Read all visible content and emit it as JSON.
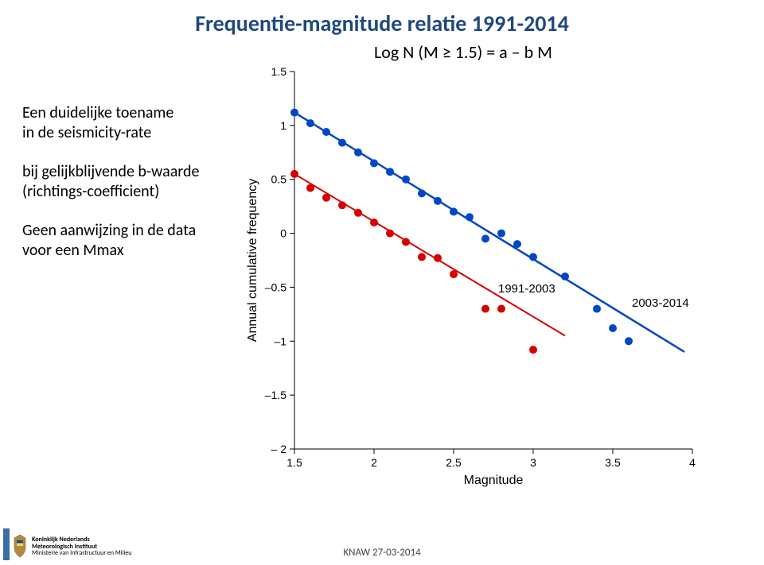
{
  "title": "Frequentie-magnitude relatie 1991-2014",
  "title_color": "#1f497d",
  "equation": "Log N (M ≥ 1.5) = a – b M",
  "side_text": {
    "block1_line1": "Een duidelijke toename",
    "block1_line2": "in de seismicity-rate",
    "block2_line1": "bij gelijkblijvende b-waarde",
    "block2_line2": "(richtings-coefficient)",
    "block3_line1": "Geen aanwijzing in de data",
    "block3_line2": "voor een Mmax"
  },
  "chart": {
    "type": "scatter-with-lines",
    "background_color": "#ffffff",
    "axis_color": "#000000",
    "tick_fontsize": 14,
    "label_fontsize": 16,
    "xlabel": "Magnitude",
    "ylabel": "Annual cumulative frequency",
    "xlim": [
      1.5,
      4.0
    ],
    "ylim": [
      -2.0,
      1.5
    ],
    "xticks": [
      1.5,
      2.0,
      2.5,
      3.0,
      3.5,
      4.0
    ],
    "yticks": [
      -2.0,
      -1.5,
      -1.0,
      -0.5,
      0.0,
      0.5,
      1.0,
      1.5
    ],
    "series": [
      {
        "name": "1991-2003",
        "label": "1991-2003",
        "label_x": 2.78,
        "label_y": -0.55,
        "color": "#d90000",
        "marker_size": 5,
        "line_width": 2,
        "points": [
          [
            1.5,
            0.55
          ],
          [
            1.6,
            0.42
          ],
          [
            1.7,
            0.33
          ],
          [
            1.8,
            0.26
          ],
          [
            1.9,
            0.19
          ],
          [
            2.0,
            0.1
          ],
          [
            2.1,
            0.0
          ],
          [
            2.2,
            -0.08
          ],
          [
            2.3,
            -0.22
          ],
          [
            2.4,
            -0.23
          ],
          [
            2.5,
            -0.38
          ],
          [
            2.7,
            -0.7
          ],
          [
            2.8,
            -0.7
          ],
          [
            3.0,
            -1.08
          ]
        ],
        "line": {
          "x1": 1.5,
          "y1": 0.55,
          "x2": 3.2,
          "y2": -0.95
        }
      },
      {
        "name": "2003-2014",
        "label": "2003-2014",
        "label_x": 3.62,
        "label_y": -0.68,
        "color": "#0047c5",
        "marker_size": 5,
        "line_width": 2.5,
        "points": [
          [
            1.5,
            1.12
          ],
          [
            1.6,
            1.02
          ],
          [
            1.7,
            0.94
          ],
          [
            1.8,
            0.84
          ],
          [
            1.9,
            0.75
          ],
          [
            2.0,
            0.65
          ],
          [
            2.1,
            0.57
          ],
          [
            2.2,
            0.5
          ],
          [
            2.3,
            0.37
          ],
          [
            2.4,
            0.3
          ],
          [
            2.5,
            0.2
          ],
          [
            2.6,
            0.15
          ],
          [
            2.7,
            -0.05
          ],
          [
            2.8,
            0.0
          ],
          [
            2.9,
            -0.1
          ],
          [
            3.0,
            -0.22
          ],
          [
            3.2,
            -0.4
          ],
          [
            3.4,
            -0.7
          ],
          [
            3.5,
            -0.88
          ],
          [
            3.6,
            -1.0
          ]
        ],
        "line": {
          "x1": 1.5,
          "y1": 1.12,
          "x2": 3.95,
          "y2": -1.1
        }
      }
    ]
  },
  "footer": "KNAW 27-03-2014",
  "logo": {
    "text_line1": "Koninklijk Nederlands",
    "text_line2": "Meteorologisch Instituut",
    "text_line3": "Ministerie van Infrastructuur en Milieu"
  }
}
